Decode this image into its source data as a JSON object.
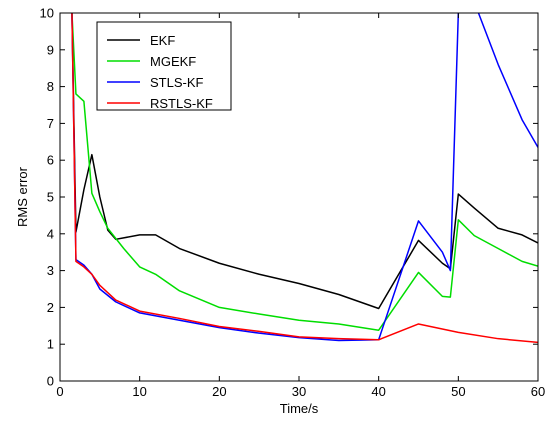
{
  "chart_data": {
    "type": "line",
    "title": "",
    "xlabel": "Time/s",
    "ylabel": "RMS error",
    "xlim": [
      0,
      60
    ],
    "ylim": [
      0,
      10
    ],
    "xticks": [
      0,
      10,
      20,
      30,
      40,
      50,
      60
    ],
    "xtick_labels": [
      "0",
      "10",
      "20",
      "30",
      "40",
      "50",
      "60"
    ],
    "yticks": [
      0,
      1,
      2,
      3,
      4,
      5,
      6,
      7,
      8,
      9,
      10
    ],
    "ytick_labels": [
      "0",
      "1",
      "2",
      "3",
      "4",
      "5",
      "6",
      "7",
      "8",
      "9",
      "10"
    ],
    "grid": false,
    "legend_position": "top-left",
    "series": [
      {
        "name": "EKF",
        "color": "#000000",
        "points": [
          [
            1,
            12
          ],
          [
            1.5,
            10
          ],
          [
            2,
            4.05
          ],
          [
            3,
            5.2
          ],
          [
            4,
            6.15
          ],
          [
            5,
            5.0
          ],
          [
            6,
            4.1
          ],
          [
            7,
            3.85
          ],
          [
            10,
            3.97
          ],
          [
            12,
            3.97
          ],
          [
            15,
            3.6
          ],
          [
            20,
            3.2
          ],
          [
            25,
            2.9
          ],
          [
            30,
            2.65
          ],
          [
            35,
            2.35
          ],
          [
            40,
            1.97
          ],
          [
            45,
            3.82
          ],
          [
            48,
            3.2
          ],
          [
            49,
            3.05
          ],
          [
            50,
            5.08
          ],
          [
            52,
            4.7
          ],
          [
            55,
            4.15
          ],
          [
            58,
            3.97
          ],
          [
            60,
            3.75
          ]
        ]
      },
      {
        "name": "MGEKF",
        "color": "#00dd00",
        "points": [
          [
            1,
            12
          ],
          [
            1.5,
            10
          ],
          [
            2,
            7.8
          ],
          [
            3,
            7.6
          ],
          [
            4,
            5.1
          ],
          [
            5,
            4.6
          ],
          [
            6,
            4.15
          ],
          [
            8,
            3.6
          ],
          [
            10,
            3.1
          ],
          [
            12,
            2.9
          ],
          [
            15,
            2.45
          ],
          [
            20,
            2.0
          ],
          [
            25,
            1.82
          ],
          [
            30,
            1.65
          ],
          [
            35,
            1.55
          ],
          [
            40,
            1.38
          ],
          [
            45,
            2.95
          ],
          [
            48,
            2.3
          ],
          [
            49,
            2.28
          ],
          [
            50,
            4.38
          ],
          [
            52,
            3.95
          ],
          [
            55,
            3.6
          ],
          [
            58,
            3.25
          ],
          [
            60,
            3.12
          ]
        ]
      },
      {
        "name": "STLS-KF",
        "color": "#0000ff",
        "points": [
          [
            1,
            12
          ],
          [
            1.5,
            10
          ],
          [
            2,
            3.3
          ],
          [
            3,
            3.15
          ],
          [
            4,
            2.9
          ],
          [
            5,
            2.5
          ],
          [
            7,
            2.15
          ],
          [
            10,
            1.85
          ],
          [
            15,
            1.65
          ],
          [
            20,
            1.45
          ],
          [
            25,
            1.3
          ],
          [
            30,
            1.18
          ],
          [
            35,
            1.1
          ],
          [
            40,
            1.12
          ],
          [
            45,
            4.35
          ],
          [
            48,
            3.5
          ],
          [
            49,
            3.0
          ],
          [
            50,
            10
          ],
          [
            51,
            10.5
          ],
          [
            52,
            10.3
          ],
          [
            55,
            8.6
          ],
          [
            58,
            7.1
          ],
          [
            60,
            6.35
          ]
        ]
      },
      {
        "name": "RSTLS-KF",
        "color": "#ff0000",
        "points": [
          [
            1,
            12
          ],
          [
            1.5,
            10
          ],
          [
            2,
            3.25
          ],
          [
            3,
            3.1
          ],
          [
            4,
            2.9
          ],
          [
            5,
            2.6
          ],
          [
            7,
            2.2
          ],
          [
            10,
            1.9
          ],
          [
            15,
            1.7
          ],
          [
            20,
            1.48
          ],
          [
            25,
            1.35
          ],
          [
            30,
            1.2
          ],
          [
            35,
            1.15
          ],
          [
            40,
            1.12
          ],
          [
            45,
            1.55
          ],
          [
            50,
            1.32
          ],
          [
            55,
            1.15
          ],
          [
            60,
            1.05
          ]
        ]
      }
    ]
  }
}
